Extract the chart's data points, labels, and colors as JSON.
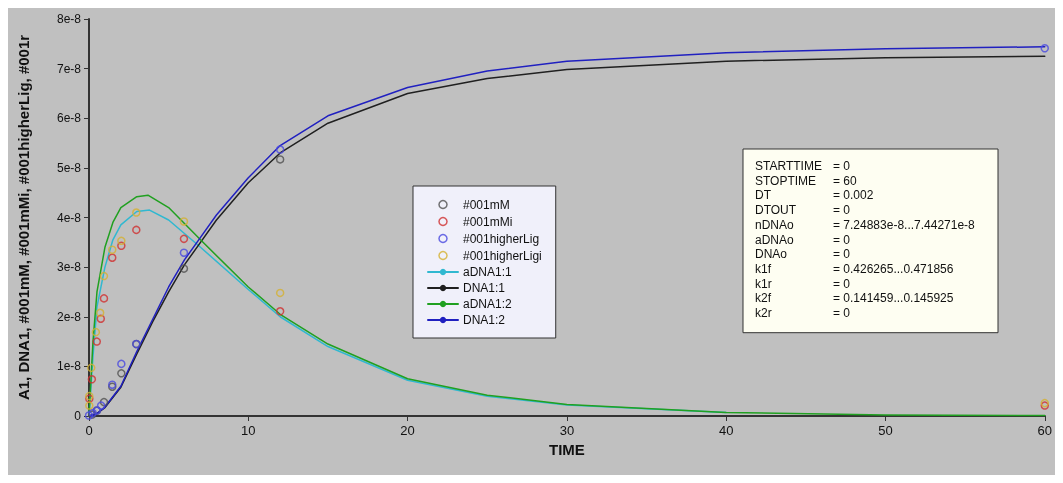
{
  "chart_data": {
    "type": "line",
    "xlabel": "TIME",
    "ylabel": "A1, DNA1, #001mM, #001mMi, #001higherLig, #001r",
    "xlim": [
      0,
      60
    ],
    "xticks": [
      0,
      10,
      20,
      30,
      40,
      50,
      60
    ],
    "ylim": [
      0,
      8e-08
    ],
    "yticks": [
      {
        "value": 0,
        "label": "0"
      },
      {
        "value": 1e-08,
        "label": "1e-8"
      },
      {
        "value": 2e-08,
        "label": "2e-8"
      },
      {
        "value": 3e-08,
        "label": "3e-8"
      },
      {
        "value": 4e-08,
        "label": "4e-8"
      },
      {
        "value": 5e-08,
        "label": "5e-8"
      },
      {
        "value": 6e-08,
        "label": "6e-8"
      },
      {
        "value": 7e-08,
        "label": "7e-8"
      },
      {
        "value": 8e-08,
        "label": "8e-8"
      }
    ],
    "grid": false,
    "legend": "center",
    "series": [
      {
        "name": "#001mM",
        "type": "scatter",
        "marker": "circle",
        "color": "#505050",
        "x": [
          0.2,
          0.5,
          0.94,
          1.46,
          2.03,
          2.97,
          5.96,
          12
        ],
        "values": [
          3e-10,
          1.1e-09,
          2.8e-09,
          5.9e-09,
          8.6e-09,
          1.45e-08,
          2.97e-08,
          5.17e-08
        ]
      },
      {
        "name": "#001mMi",
        "type": "scatter",
        "marker": "circle",
        "color": "#d03030",
        "x": [
          0.02,
          0.18,
          0.49,
          0.74,
          0.94,
          1.46,
          2.03,
          2.97,
          5.96,
          12,
          60
        ],
        "values": [
          3.5e-09,
          7.4e-09,
          1.5e-08,
          1.96e-08,
          2.37e-08,
          3.19e-08,
          3.43e-08,
          3.75e-08,
          3.57e-08,
          2.11e-08,
          2.1e-09
        ]
      },
      {
        "name": "#001higherLig",
        "type": "scatter",
        "marker": "circle",
        "color": "#4848e0",
        "x": [
          0,
          0.23,
          0.49,
          0.76,
          1.46,
          2.03,
          2.97,
          5.96,
          12,
          60
        ],
        "values": [
          1e-10,
          6e-10,
          1.1e-09,
          2.1e-09,
          6.3e-09,
          1.05e-08,
          1.45e-08,
          3.29e-08,
          5.37e-08,
          7.41e-08
        ]
      },
      {
        "name": "#001higherLigi",
        "type": "scatter",
        "marker": "circle",
        "color": "#d4b030",
        "x": [
          0.02,
          0.02,
          0.14,
          0.43,
          0.7,
          0.94,
          1.46,
          2.03,
          2.97,
          5.96,
          12,
          60
        ],
        "values": [
          2.1e-09,
          4e-09,
          9.7e-09,
          1.69e-08,
          2.08e-08,
          2.82e-08,
          3.35e-08,
          3.53e-08,
          4.1e-08,
          3.92e-08,
          2.48e-08,
          2.6e-09
        ]
      },
      {
        "name": "aDNA1:1",
        "marker": "none",
        "color": "#30b8d0",
        "x": [
          0,
          0.25,
          0.5,
          1,
          1.5,
          2,
          3,
          3.8,
          5,
          7,
          10,
          12,
          15,
          20,
          25,
          30,
          40
        ],
        "values": [
          0,
          1.2e-08,
          2.2e-08,
          3e-08,
          3.55e-08,
          3.85e-08,
          4.12e-08,
          4.15e-08,
          3.95e-08,
          3.4e-08,
          2.55e-08,
          2e-08,
          1.4e-08,
          7.2e-09,
          4e-09,
          2.2e-09,
          7e-10
        ]
      },
      {
        "name": "DNA1:1",
        "marker": "none",
        "color": "#202020",
        "x": [
          0,
          0.5,
          1,
          2,
          3,
          4,
          5,
          6,
          7,
          8,
          10,
          12,
          15,
          20,
          25,
          30,
          40,
          50,
          60
        ],
        "values": [
          0,
          5e-10,
          1.7e-09,
          5.8e-09,
          1.25e-08,
          1.9e-08,
          2.5e-08,
          3.05e-08,
          3.5e-08,
          3.95e-08,
          4.7e-08,
          5.3e-08,
          5.9e-08,
          6.5e-08,
          6.8e-08,
          6.98e-08,
          7.15e-08,
          7.22e-08,
          7.25e-08
        ]
      },
      {
        "name": "aDNA1:2",
        "marker": "none",
        "color": "#20a020",
        "x": [
          0,
          0.25,
          0.5,
          1,
          1.5,
          2,
          3,
          3.7,
          5,
          7,
          10,
          12,
          15,
          20,
          25,
          30,
          40,
          50,
          60
        ],
        "values": [
          0,
          1.5e-08,
          2.5e-08,
          3.4e-08,
          3.9e-08,
          4.2e-08,
          4.42e-08,
          4.45e-08,
          4.2e-08,
          3.55e-08,
          2.6e-08,
          2.05e-08,
          1.45e-08,
          7.5e-09,
          4.2e-09,
          2.3e-09,
          7e-10,
          2e-10,
          1e-10
        ]
      },
      {
        "name": "DNA1:2",
        "marker": "none",
        "color": "#2020c0",
        "x": [
          0,
          0.5,
          1,
          2,
          3,
          4,
          5,
          6,
          7,
          8,
          10,
          12,
          15,
          20,
          25,
          30,
          40,
          50,
          60
        ],
        "values": [
          0,
          5e-10,
          1.8e-09,
          6e-09,
          1.3e-08,
          1.95e-08,
          2.6e-08,
          3.15e-08,
          3.6e-08,
          4.05e-08,
          4.8e-08,
          5.45e-08,
          6.05e-08,
          6.62e-08,
          6.95e-08,
          7.15e-08,
          7.32e-08,
          7.4e-08,
          7.44e-08
        ]
      }
    ],
    "annotations": [
      "STARTTIME = 0",
      "STOPTIME = 60",
      "DT = 0.002",
      "DTOUT = 0",
      "nDNAo = 7.24883e-8...7.44271e-8",
      "aDNAo = 0",
      "DNAo = 0",
      "k1f = 0.426265...0.471856",
      "k1r = 0",
      "k2f = 0.141459...0.145925",
      "k2r = 0"
    ]
  }
}
